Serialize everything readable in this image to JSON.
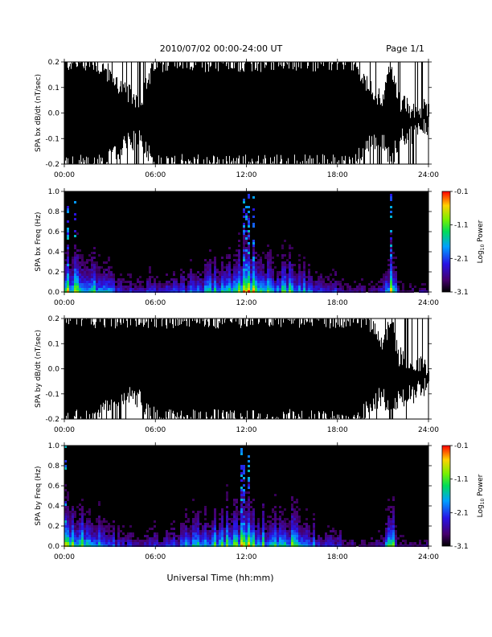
{
  "header": {
    "title": "2010/07/02  00:00-24:00 UT",
    "page": "Page 1/1"
  },
  "xaxis": {
    "label": "Universal Time (hh:mm)",
    "ticks": [
      "00:00",
      "06:00",
      "12:00",
      "18:00",
      "24:00"
    ]
  },
  "chart_data": [
    {
      "type": "line",
      "panel": "waveform",
      "ylabel": "SPA bx dB/dt (nT/sec)",
      "ylim": [
        -0.2,
        0.2
      ],
      "yticks": [
        -0.2,
        -0.1,
        0.0,
        0.1,
        0.2
      ],
      "ytick_labels": [
        "-0.2",
        "-0.1",
        "0.0",
        "0.1",
        "0.2"
      ],
      "xlim_hours": [
        0,
        24
      ],
      "x_ticks": [
        "00:00",
        "06:00",
        "12:00",
        "18:00",
        "24:00"
      ],
      "series": [
        {
          "hours": [
            0,
            1,
            2,
            3,
            4,
            5,
            6,
            7,
            8,
            9,
            10,
            11,
            12,
            13,
            14,
            15,
            16,
            17,
            18,
            19,
            20,
            21,
            21.5,
            22,
            23,
            24
          ],
          "upper_envelope": [
            0.2,
            0.2,
            0.2,
            0.15,
            0.08,
            0.05,
            0.2,
            0.2,
            0.2,
            0.2,
            0.2,
            0.2,
            0.2,
            0.2,
            0.2,
            0.2,
            0.2,
            0.2,
            0.2,
            0.2,
            0.1,
            0.05,
            0.2,
            0.05,
            0.0,
            0.03
          ],
          "lower_envelope": [
            -0.2,
            -0.2,
            -0.2,
            -0.18,
            -0.12,
            -0.1,
            -0.2,
            -0.2,
            -0.2,
            -0.2,
            -0.2,
            -0.2,
            -0.2,
            -0.2,
            -0.2,
            -0.2,
            -0.2,
            -0.2,
            -0.2,
            -0.2,
            -0.12,
            -0.1,
            -0.2,
            -0.1,
            -0.08,
            -0.05
          ]
        }
      ]
    },
    {
      "type": "heatmap",
      "panel": "spectrogram",
      "ylabel": "SPA bx Freq (Hz)",
      "ylim": [
        0.0,
        1.0
      ],
      "yticks": [
        0.0,
        0.2,
        0.4,
        0.6,
        0.8,
        1.0
      ],
      "ytick_labels": [
        "0.0",
        "0.2",
        "0.4",
        "0.6",
        "0.8",
        "1.0"
      ],
      "xlim_hours": [
        0,
        24
      ],
      "x_ticks": [
        "00:00",
        "06:00",
        "12:00",
        "18:00",
        "24:00"
      ],
      "colorbar": {
        "label": "Log10 Power",
        "label_base": "Log",
        "label_sub": "10",
        "label_tail": " Power",
        "range": [
          -3.1,
          -0.1
        ],
        "ticks": [
          "-0.1",
          "-1.1",
          "-2.1",
          "-3.1"
        ]
      },
      "activity_hours": [
        0,
        1,
        2,
        3,
        4,
        5,
        6,
        7,
        8,
        9,
        10,
        11,
        12,
        13,
        14,
        15,
        16,
        17,
        18,
        19,
        20,
        21,
        21.5,
        22,
        23,
        24
      ],
      "activity_level": [
        0.9,
        0.7,
        0.6,
        0.45,
        0.3,
        0.25,
        0.35,
        0.3,
        0.4,
        0.5,
        0.6,
        0.75,
        0.95,
        0.7,
        0.6,
        0.65,
        0.5,
        0.35,
        0.3,
        0.2,
        0.15,
        0.25,
        1.0,
        0.2,
        0.15,
        0.2
      ]
    },
    {
      "type": "line",
      "panel": "waveform",
      "ylabel": "SPA by dB/dt (nT/sec)",
      "ylim": [
        -0.2,
        0.2
      ],
      "yticks": [
        -0.2,
        -0.1,
        0.0,
        0.1,
        0.2
      ],
      "ytick_labels": [
        "-0.2",
        "-0.1",
        "0.0",
        "0.1",
        "0.2"
      ],
      "xlim_hours": [
        0,
        24
      ],
      "x_ticks": [
        "00:00",
        "06:00",
        "12:00",
        "18:00",
        "24:00"
      ],
      "series": [
        {
          "hours": [
            0,
            1,
            2,
            3,
            4,
            5,
            6,
            7,
            8,
            9,
            10,
            11,
            12,
            13,
            14,
            15,
            16,
            17,
            18,
            19,
            20,
            21,
            21.5,
            22,
            23,
            24
          ],
          "upper_envelope": [
            0.2,
            0.2,
            0.2,
            0.2,
            0.2,
            0.2,
            0.2,
            0.2,
            0.2,
            0.2,
            0.2,
            0.2,
            0.2,
            0.2,
            0.2,
            0.2,
            0.2,
            0.2,
            0.2,
            0.2,
            0.2,
            0.08,
            0.2,
            0.05,
            0.02,
            0.0
          ],
          "lower_envelope": [
            -0.2,
            -0.2,
            -0.2,
            -0.15,
            -0.1,
            -0.12,
            -0.2,
            -0.2,
            -0.2,
            -0.2,
            -0.2,
            -0.2,
            -0.2,
            -0.2,
            -0.2,
            -0.2,
            -0.2,
            -0.2,
            -0.2,
            -0.2,
            -0.15,
            -0.1,
            -0.2,
            -0.12,
            -0.1,
            -0.06
          ]
        }
      ]
    },
    {
      "type": "heatmap",
      "panel": "spectrogram",
      "ylabel": "SPA by Freq (Hz)",
      "ylim": [
        0.0,
        1.0
      ],
      "yticks": [
        0.0,
        0.2,
        0.4,
        0.6,
        0.8,
        1.0
      ],
      "ytick_labels": [
        "0.0",
        "0.2",
        "0.4",
        "0.6",
        "0.8",
        "1.0"
      ],
      "xlim_hours": [
        0,
        24
      ],
      "x_ticks": [
        "00:00",
        "06:00",
        "12:00",
        "18:00",
        "24:00"
      ],
      "colorbar": {
        "label": "Log10 Power",
        "label_base": "Log",
        "label_sub": "10",
        "label_tail": " Power",
        "range": [
          -3.1,
          -0.1
        ],
        "ticks": [
          "-0.1",
          "-1.1",
          "-2.1",
          "-3.1"
        ]
      },
      "activity_hours": [
        0,
        1,
        2,
        3,
        4,
        5,
        6,
        7,
        8,
        9,
        10,
        11,
        12,
        13,
        14,
        15,
        16,
        17,
        18,
        19,
        20,
        21,
        21.5,
        22,
        23,
        24
      ],
      "activity_level": [
        0.85,
        0.7,
        0.65,
        0.45,
        0.3,
        0.25,
        0.35,
        0.3,
        0.55,
        0.6,
        0.65,
        0.7,
        0.9,
        0.7,
        0.6,
        0.7,
        0.5,
        0.35,
        0.3,
        0.2,
        0.15,
        0.25,
        1.0,
        0.2,
        0.15,
        0.2
      ]
    }
  ]
}
